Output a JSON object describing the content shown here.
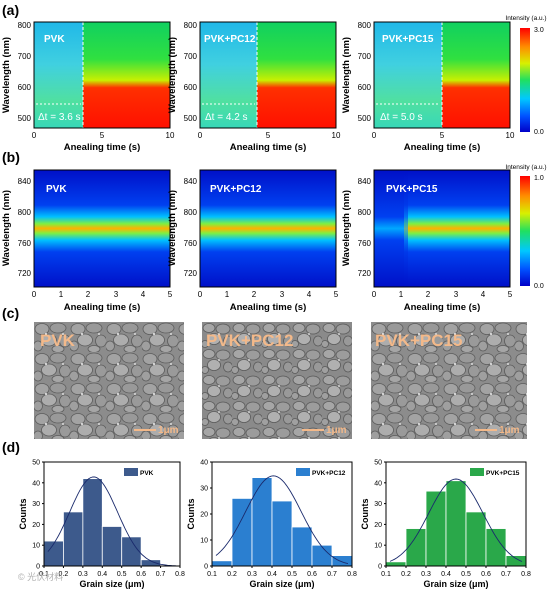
{
  "panel_labels": [
    "(a)",
    "(b)",
    "(c)",
    "(d)"
  ],
  "row_a": {
    "xlabel": "Anealing time (s)",
    "ylabel": "Wavelength (nm)",
    "xticks": [
      "0",
      "5",
      "10"
    ],
    "yticks": [
      "500",
      "600",
      "700",
      "800"
    ],
    "colorbar_title": "Intensity (a.u.)",
    "colorbar_max": "3.0",
    "colorbar_min": "0.0",
    "panels": [
      {
        "name": "PVK",
        "dt_label": "Δt = 3.6 s",
        "dt": 3.6
      },
      {
        "name": "PVK+PC12",
        "dt_label": "Δt = 4.2 s",
        "dt": 4.2
      },
      {
        "name": "PVK+PC15",
        "dt_label": "Δt = 5.0 s",
        "dt": 5.0
      }
    ]
  },
  "row_b": {
    "xlabel": "Anealing time (s)",
    "ylabel": "Wavelength (nm)",
    "xticks": [
      "0",
      "1",
      "2",
      "3",
      "4",
      "5"
    ],
    "yticks": [
      "720",
      "760",
      "800",
      "840"
    ],
    "colorbar_title": "Intensity (a.u.)",
    "colorbar_max": "1.0",
    "colorbar_min": "0.0",
    "panels": [
      {
        "name": "PVK",
        "peak_nm": 772
      },
      {
        "name": "PVK+PC12",
        "peak_nm": 772
      },
      {
        "name": "PVK+PC15",
        "peak_nm": 772
      }
    ]
  },
  "row_c": {
    "panels": [
      {
        "name": "PVK",
        "scale_bar": "1μm"
      },
      {
        "name": "PVK+PC12",
        "scale_bar": "1μm"
      },
      {
        "name": "PVK+PC15",
        "scale_bar": "1μm"
      }
    ]
  },
  "watermark": "© 光伏材料",
  "colors": {
    "pvk": "#3d5a8c",
    "pc12": "#2b7fd0",
    "pc15": "#2aa84a",
    "fit_line": "#1a2a6c"
  },
  "chart_data": [
    {
      "type": "bar",
      "title": "PVK",
      "xlabel": "Grain size (μm)",
      "ylabel": "Counts",
      "xticks": [
        "0.1",
        "0.2",
        "0.3",
        "0.4",
        "0.5",
        "0.6",
        "0.7",
        "0.8"
      ],
      "yticks": [
        "0",
        "10",
        "20",
        "30",
        "40",
        "50"
      ],
      "xlim": [
        0.1,
        0.8
      ],
      "ylim": [
        0,
        50
      ],
      "x": [
        0.15,
        0.25,
        0.35,
        0.45,
        0.55,
        0.65
      ],
      "values": [
        12,
        26,
        42,
        19,
        14,
        3
      ],
      "legend": "top-right",
      "series": [
        {
          "name": "PVK",
          "values": [
            12,
            26,
            42,
            19,
            14,
            3
          ]
        }
      ]
    },
    {
      "type": "bar",
      "title": "PVK+PC12",
      "xlabel": "Grain size (μm)",
      "ylabel": "Counts",
      "xticks": [
        "0.1",
        "0.2",
        "0.3",
        "0.4",
        "0.5",
        "0.6",
        "0.7",
        "0.8"
      ],
      "yticks": [
        "0",
        "10",
        "20",
        "30",
        "40"
      ],
      "xlim": [
        0.1,
        0.8
      ],
      "ylim": [
        0,
        40
      ],
      "x": [
        0.15,
        0.25,
        0.35,
        0.45,
        0.55,
        0.65,
        0.75
      ],
      "values": [
        2,
        26,
        34,
        25,
        15,
        8,
        4
      ],
      "legend": "top-right",
      "series": [
        {
          "name": "PVK+PC12",
          "values": [
            2,
            26,
            34,
            25,
            15,
            8,
            4
          ]
        }
      ]
    },
    {
      "type": "bar",
      "title": "PVK+PC15",
      "xlabel": "Grain size (μm)",
      "ylabel": "Counts",
      "xticks": [
        "0.1",
        "0.2",
        "0.3",
        "0.4",
        "0.5",
        "0.6",
        "0.7",
        "0.8"
      ],
      "yticks": [
        "0",
        "10",
        "20",
        "30",
        "40",
        "50"
      ],
      "xlim": [
        0.1,
        0.8
      ],
      "ylim": [
        0,
        50
      ],
      "x": [
        0.15,
        0.25,
        0.35,
        0.45,
        0.55,
        0.65,
        0.75
      ],
      "values": [
        2,
        18,
        36,
        41,
        26,
        18,
        5
      ],
      "legend": "top-right",
      "series": [
        {
          "name": "PVK+PC15",
          "values": [
            2,
            18,
            36,
            41,
            26,
            18,
            5
          ]
        }
      ]
    }
  ]
}
